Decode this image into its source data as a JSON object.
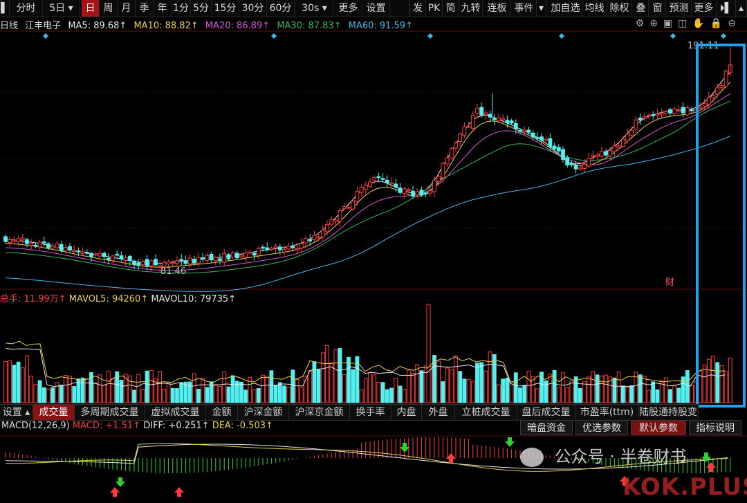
{
  "toolbar": {
    "left_items": [
      "分时",
      "5日",
      "日",
      "周",
      "月",
      "季",
      "年",
      "1分",
      "5分",
      "15分",
      "30分",
      "60分",
      "30s",
      "更多",
      "设置"
    ],
    "active": "日",
    "right_items": [
      "发",
      "PK",
      "简",
      "九转",
      "连板",
      "事件",
      "加自选",
      "均线",
      "除权",
      "叠",
      "窗",
      "预测",
      "更多"
    ]
  },
  "legend": {
    "period": "日线",
    "stock": "江丰电子",
    "ma5": "MA5: 89.68↑",
    "ma10": "MA10: 88.82↑",
    "ma20": "MA20: 86.89↑",
    "ma30": "MA30: 87.83↑",
    "ma60": "MA60: 91.59↑"
  },
  "price_panel": {
    "high_label": "191.11",
    "low_label": "81.46",
    "cai_label": "财"
  },
  "volume_panel": {
    "label": "总手: 11.99万↑",
    "mavol5": "MAVOL5: 94260↑",
    "mavol10": "MAVOL10: 79735↑"
  },
  "subtabs": [
    "设置",
    "成交量",
    "多周期成交量",
    "虚拟成交量",
    "金额",
    "沪深金额",
    "沪深京金额",
    "换手率",
    "内盘",
    "外盘",
    "立桩成交量",
    "盘后成交量",
    "市盈率(ttm)",
    "陆股通持股变化"
  ],
  "subtab_active": "成交量",
  "macd": {
    "title": "MACD(12,26,9)",
    "macd": "MACD: +1.51↑",
    "diff": "DIFF: +0.251↑",
    "dea": "DEA: -0.503↑"
  },
  "right_buttons": [
    "暗盘资金",
    "优选参数",
    "默认参数",
    "指标说明"
  ],
  "right_button_active": "默认参数",
  "watermark": {
    "account": "公众号 · 半卷财书",
    "site": "KOK.PLUS"
  },
  "colors": {
    "up": "#ff3b3b",
    "down": "#54f0f0",
    "ma5": "#e8e8e8",
    "ma10": "#e6d24a",
    "ma20": "#d45ad4",
    "ma30": "#31b85a",
    "ma60": "#3fb7ea",
    "highlight_box": "#1fa3ee"
  }
}
